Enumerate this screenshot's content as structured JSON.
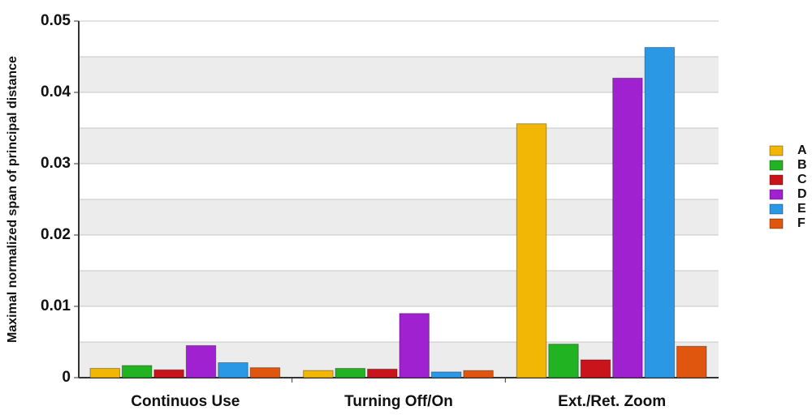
{
  "chart_data": {
    "type": "bar",
    "ylabel": "Maximal normalized span of principal distance",
    "categories": [
      "Continuos Use",
      "Turning Off/On",
      "Ext./Ret. Zoom"
    ],
    "series": [
      {
        "name": "A",
        "color": "#f2b705",
        "values": [
          0.0013,
          0.001,
          0.0356
        ]
      },
      {
        "name": "B",
        "color": "#22b322",
        "values": [
          0.0017,
          0.0013,
          0.0047
        ]
      },
      {
        "name": "C",
        "color": "#c8141a",
        "values": [
          0.0011,
          0.0012,
          0.0025
        ]
      },
      {
        "name": "D",
        "color": "#a021cf",
        "values": [
          0.0045,
          0.009,
          0.042
        ]
      },
      {
        "name": "E",
        "color": "#2b98e6",
        "values": [
          0.0021,
          0.0008,
          0.0463
        ]
      },
      {
        "name": "F",
        "color": "#e0560f",
        "values": [
          0.0014,
          0.001,
          0.0044
        ]
      }
    ],
    "ylim": [
      0,
      0.05
    ],
    "yticks": [
      0,
      0.01,
      0.02,
      0.03,
      0.04,
      0.05
    ],
    "grid": true,
    "legend": "right"
  }
}
